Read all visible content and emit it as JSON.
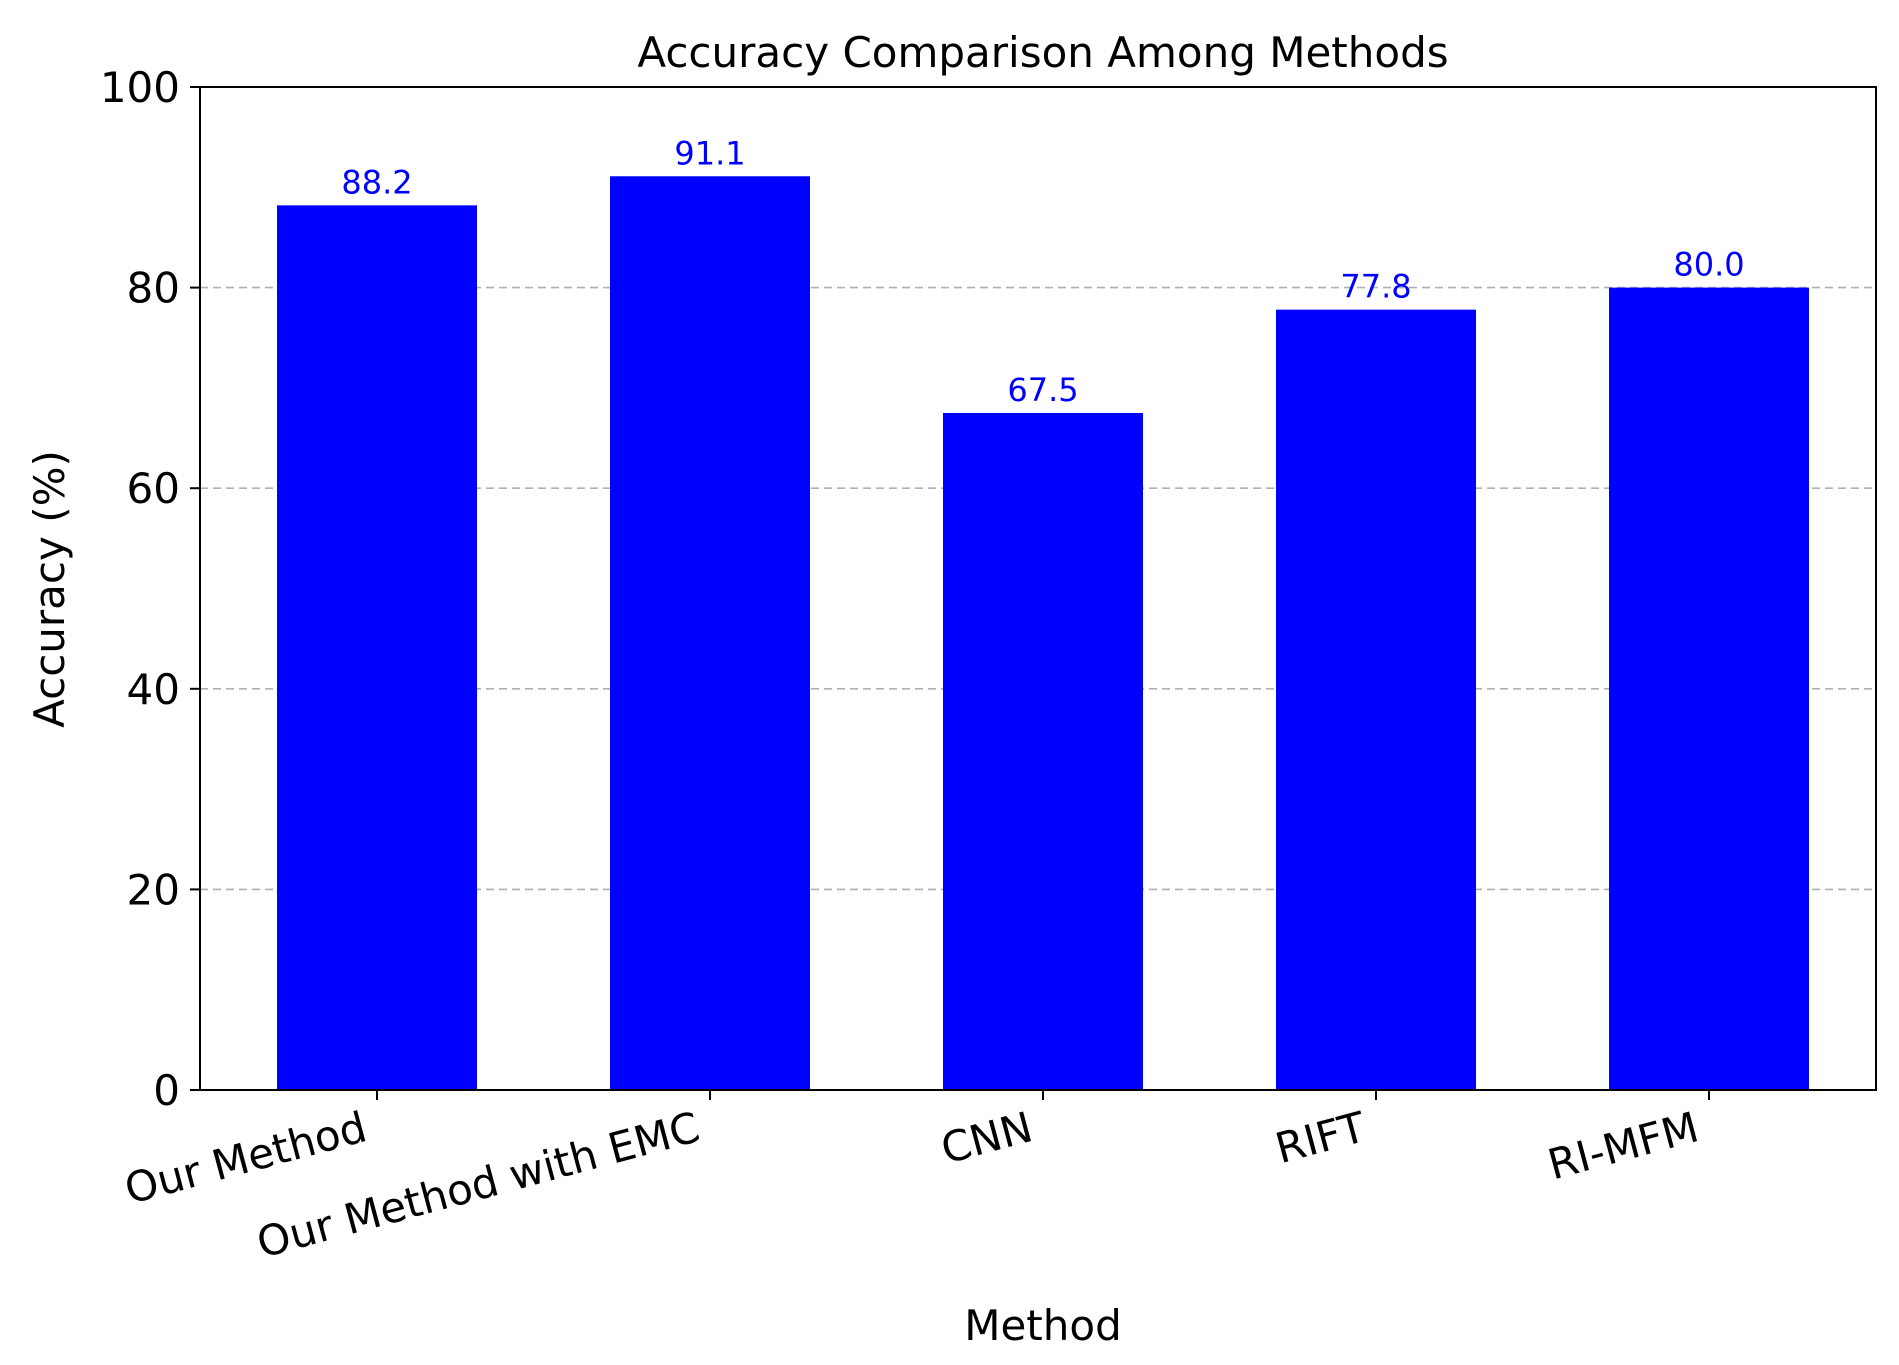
{
  "chart_data": {
    "type": "bar",
    "title": "Accuracy Comparison Among Methods",
    "xlabel": "Method",
    "ylabel": "Accuracy (%)",
    "categories": [
      "Our Method",
      "Our Method with EMC",
      "CNN",
      "RIFT",
      "RI-MFM"
    ],
    "values": [
      88.2,
      91.1,
      67.5,
      77.8,
      80.0
    ],
    "value_labels": [
      "88.2",
      "91.1",
      "67.5",
      "77.8",
      "80.0"
    ],
    "ylim": [
      0,
      100
    ],
    "yticks": [
      0,
      20,
      40,
      60,
      80,
      100
    ],
    "ytick_labels": [
      "0",
      "20",
      "40",
      "60",
      "80",
      "100"
    ],
    "grid": "y-dashed",
    "colors": {
      "bar": "#0000ff",
      "value_label": "#0000ff",
      "grid": "#b0b0b0",
      "axis": "#000000",
      "text": "#000000"
    }
  }
}
